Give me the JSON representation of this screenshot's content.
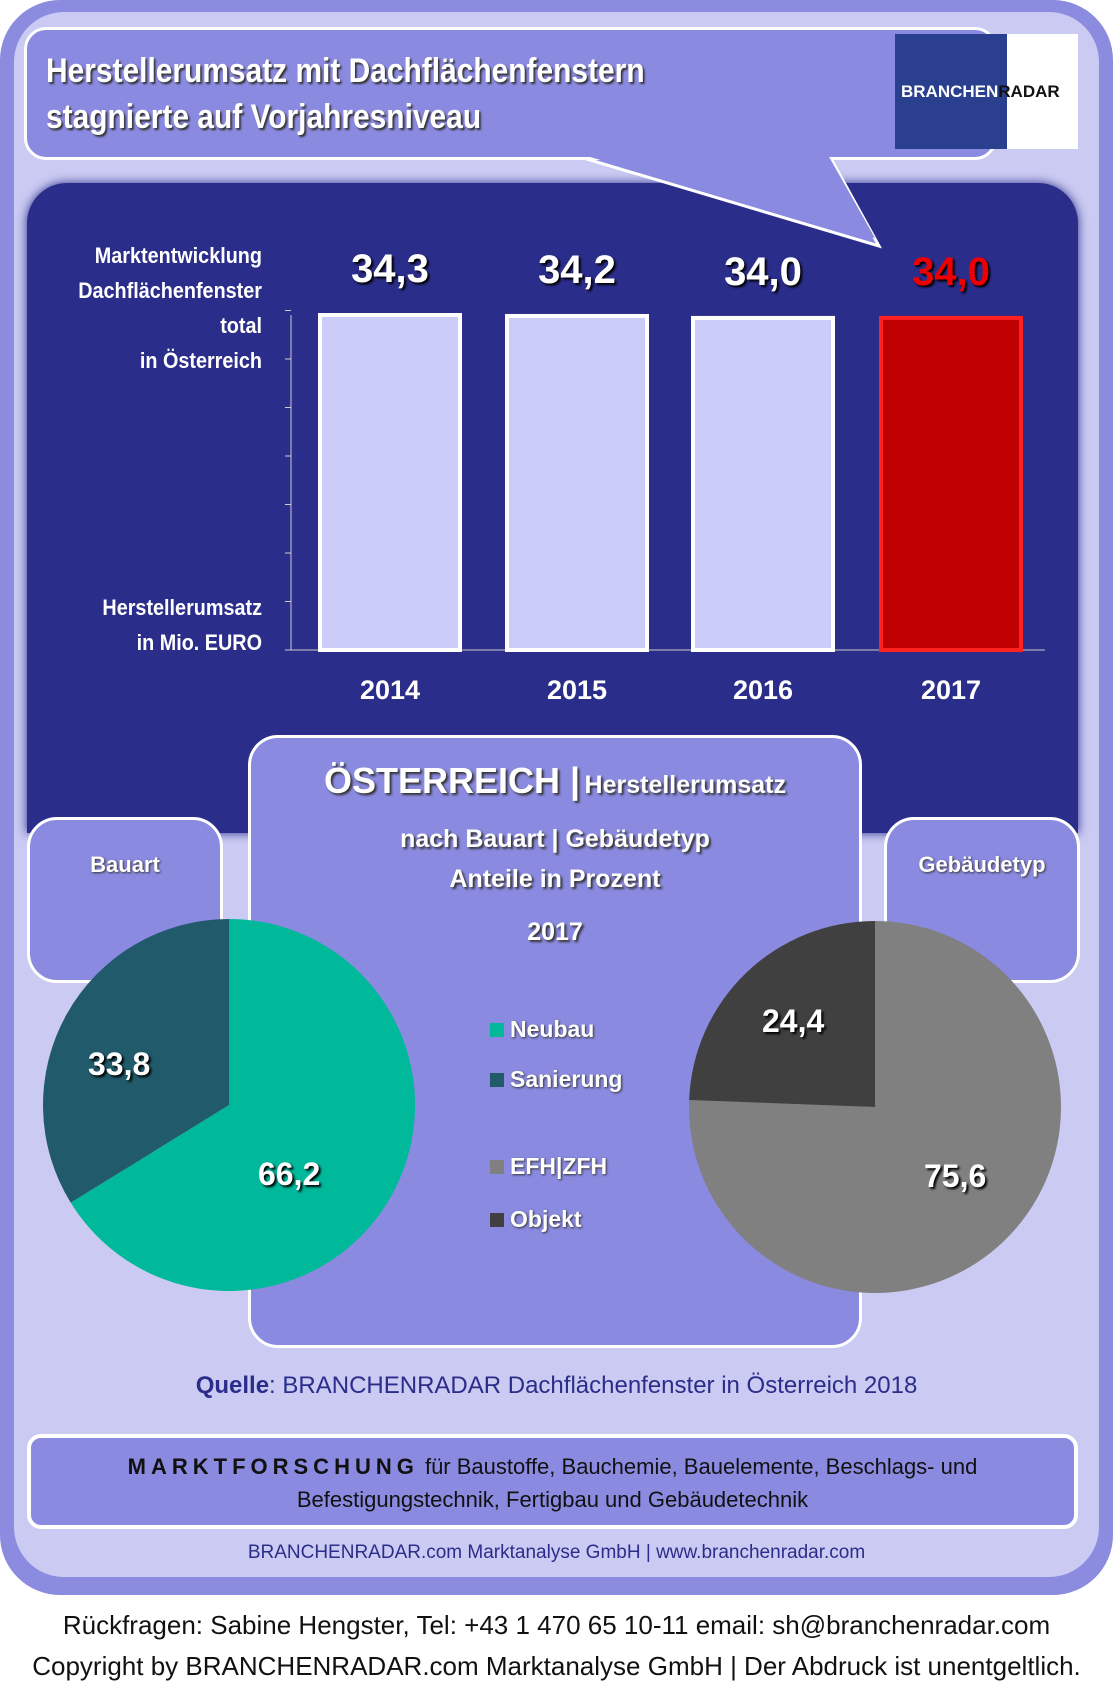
{
  "title": [
    "Herstellerumsatz mit  Dachflächenfenstern",
    "stagnierte auf Vorjahresniveau"
  ],
  "logo": {
    "part1": "BRANCHEN",
    "part2": "RADAR"
  },
  "colors": {
    "bar": "#ccccf8",
    "highlight": "#c00000",
    "neubau": "#00b89a",
    "sanierung": "#215a6a",
    "efh": "#808080",
    "objekt": "#404040"
  },
  "chart_data": [
    {
      "type": "bar",
      "title": "Marktentwicklung Dachflächenfenster total in Österreich",
      "ylabel": "Herstellerumsatz in Mio. EURO",
      "categories": [
        "2014",
        "2015",
        "2016",
        "2017"
      ],
      "values": [
        34.3,
        34.2,
        34.0,
        34.0
      ],
      "value_labels": [
        "34,3",
        "34,2",
        "34,0",
        "34,0"
      ],
      "highlight": "2017",
      "ylim": [
        0,
        34.3
      ]
    },
    {
      "type": "pie",
      "title": "Bauart",
      "labels": [
        "Neubau",
        "Sanierung"
      ],
      "values": [
        66.2,
        33.8
      ],
      "value_labels": [
        "66,2",
        "33,8"
      ]
    },
    {
      "type": "pie",
      "title": "Gebäudetyp",
      "labels": [
        "EFH|ZFH",
        "Objekt"
      ],
      "values": [
        75.6,
        24.4
      ],
      "value_labels": [
        "75,6",
        "24,4"
      ]
    }
  ],
  "ylabel_top": [
    "Marktentwicklung",
    "Dachflächenfenster",
    "total",
    "in Österreich"
  ],
  "ylabel_bottom": [
    "Herstellerumsatz",
    "in Mio. EURO"
  ],
  "center": {
    "line1a": "ÖSTERREICH |",
    "line1b": "Herstellerumsatz",
    "line2": "nach Bauart | Gebäudetyp",
    "line3": "Anteile in Prozent",
    "year": "2017"
  },
  "source": {
    "label": "Quelle",
    "text": ": BRANCHENRADAR Dachflächenfenster in Österreich 2018"
  },
  "market": {
    "bold": "MARKTFORSCHUNG",
    "text1": " für Baustoffe, Bauchemie, Bauelemente, Beschlags- und",
    "text2": "Befestigungstechnik, Fertigbau und Gebäudetechnik"
  },
  "company": "BRANCHENRADAR.com Marktanalyse GmbH | www.branchenradar.com",
  "footer": [
    "Rückfragen: Sabine Hengster, Tel: +43 1 470 65 10-11 email: sh@branchenradar.com",
    "Copyright by BRANCHENRADAR.com  Marktanalyse GmbH | Der Abdruck ist unentgeltlich."
  ]
}
